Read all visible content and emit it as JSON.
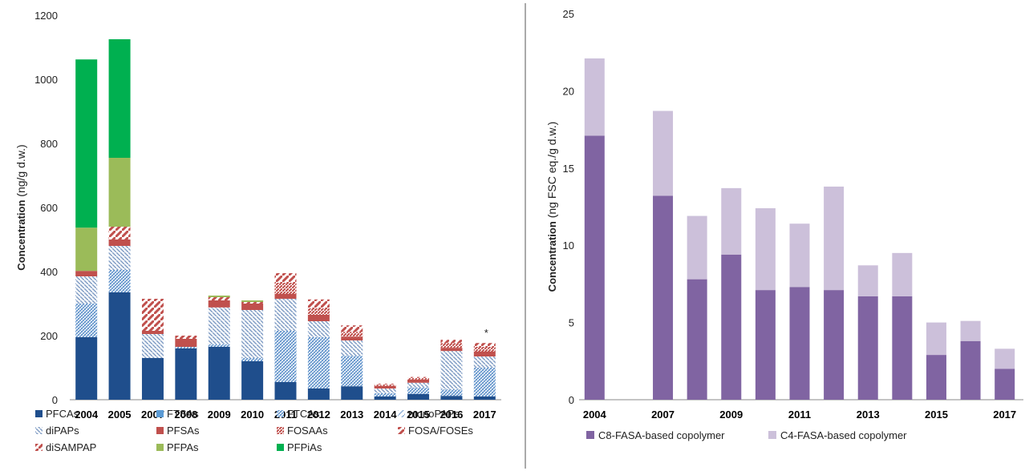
{
  "chart_data": [
    {
      "type": "bar",
      "stacked": true,
      "title": "",
      "xlabel": "",
      "ylabel_bold": "Concentration",
      "ylabel_rest": " (ng/g d.w.)",
      "ylim": [
        0,
        1200
      ],
      "yticks": [
        0,
        200,
        400,
        600,
        800,
        1000,
        1200
      ],
      "grid": false,
      "legend_position": "bottom",
      "categories": [
        "2004",
        "2005",
        "2007",
        "2008",
        "2009",
        "2010",
        "2011",
        "2012",
        "2013",
        "2014",
        "2015",
        "2016",
        "2017"
      ],
      "annotation": {
        "category": "2017",
        "text": "*"
      },
      "series": [
        {
          "name": "PFCAs",
          "color": "#1f4e8c",
          "pattern": "solid",
          "values": [
            195,
            335,
            130,
            160,
            165,
            120,
            55,
            35,
            42,
            10,
            18,
            12,
            10
          ]
        },
        {
          "name": "FTSAs",
          "color": "#5b9bd5",
          "pattern": "solid",
          "values": [
            0,
            0,
            0,
            0,
            0,
            0,
            0,
            0,
            0,
            0,
            0,
            0,
            0
          ]
        },
        {
          "name": "FTCAs",
          "color": "#5b8fc9",
          "pattern": "dots",
          "values": [
            105,
            70,
            0,
            5,
            8,
            10,
            160,
            160,
            95,
            10,
            20,
            20,
            90
          ]
        },
        {
          "name": "monoPAPs",
          "color": "#8fb0d6",
          "pattern": "diag",
          "values": [
            0,
            0,
            0,
            0,
            0,
            0,
            0,
            0,
            0,
            0,
            0,
            0,
            0
          ]
        },
        {
          "name": "diPAPs",
          "color": "#7f9cc4",
          "pattern": "anti",
          "values": [
            85,
            75,
            75,
            0,
            115,
            150,
            100,
            50,
            48,
            15,
            15,
            120,
            35
          ]
        },
        {
          "name": "PFSAs",
          "color": "#c0504d",
          "pattern": "solid",
          "values": [
            17,
            20,
            10,
            25,
            22,
            20,
            15,
            20,
            12,
            8,
            10,
            10,
            15
          ]
        },
        {
          "name": "FOSAAs",
          "color": "#c0504d",
          "pattern": "hatch",
          "values": [
            0,
            0,
            0,
            0,
            0,
            0,
            35,
            20,
            15,
            3,
            5,
            15,
            15
          ]
        },
        {
          "name": "FOSA/FOSEs",
          "color": "#c0504d",
          "pattern": "wide",
          "values": [
            0,
            40,
            100,
            10,
            10,
            5,
            30,
            28,
            20,
            4,
            3,
            10,
            12
          ]
        },
        {
          "name": "diSAMPAP",
          "color": "#c0504d",
          "pattern": "wide",
          "values": [
            0,
            0,
            0,
            0,
            0,
            0,
            0,
            0,
            0,
            0,
            0,
            0,
            0
          ]
        },
        {
          "name": "PFPAs",
          "color": "#9bbb59",
          "pattern": "solid",
          "values": [
            135,
            215,
            0,
            0,
            5,
            5,
            0,
            0,
            0,
            0,
            0,
            0,
            0
          ]
        },
        {
          "name": "PFPiAs",
          "color": "#00b050",
          "pattern": "solid",
          "values": [
            525,
            370,
            0,
            0,
            0,
            0,
            0,
            0,
            0,
            0,
            0,
            0,
            0
          ]
        }
      ]
    },
    {
      "type": "bar",
      "stacked": true,
      "title": "",
      "xlabel": "",
      "ylabel_bold": "Concentration",
      "ylabel_rest": " (ng FSC eq./g d.w.)",
      "ylim": [
        0,
        25
      ],
      "yticks": [
        0,
        5,
        10,
        15,
        20,
        25
      ],
      "grid": false,
      "legend_position": "bottom",
      "categories": [
        "2004",
        "2005",
        "2007",
        "2008",
        "2009",
        "2010",
        "2011",
        "2012",
        "2013",
        "2014",
        "2015",
        "2016",
        "2017"
      ],
      "tick_labels_shown": [
        "2004",
        "2007",
        "2009",
        "2011",
        "2013",
        "2015",
        "2017"
      ],
      "series": [
        {
          "name": "C8-FASA-based copolymer",
          "color": "#8064a2",
          "values": [
            17.1,
            0,
            13.2,
            7.8,
            9.4,
            7.1,
            7.3,
            7.1,
            6.7,
            6.7,
            2.9,
            3.8,
            2.0
          ]
        },
        {
          "name": "C4-FASA-based copolymer",
          "color": "#ccc0da",
          "values": [
            5.0,
            0,
            5.5,
            4.1,
            4.3,
            5.3,
            4.1,
            6.7,
            2.0,
            2.8,
            2.1,
            1.3,
            1.3
          ]
        }
      ]
    }
  ]
}
